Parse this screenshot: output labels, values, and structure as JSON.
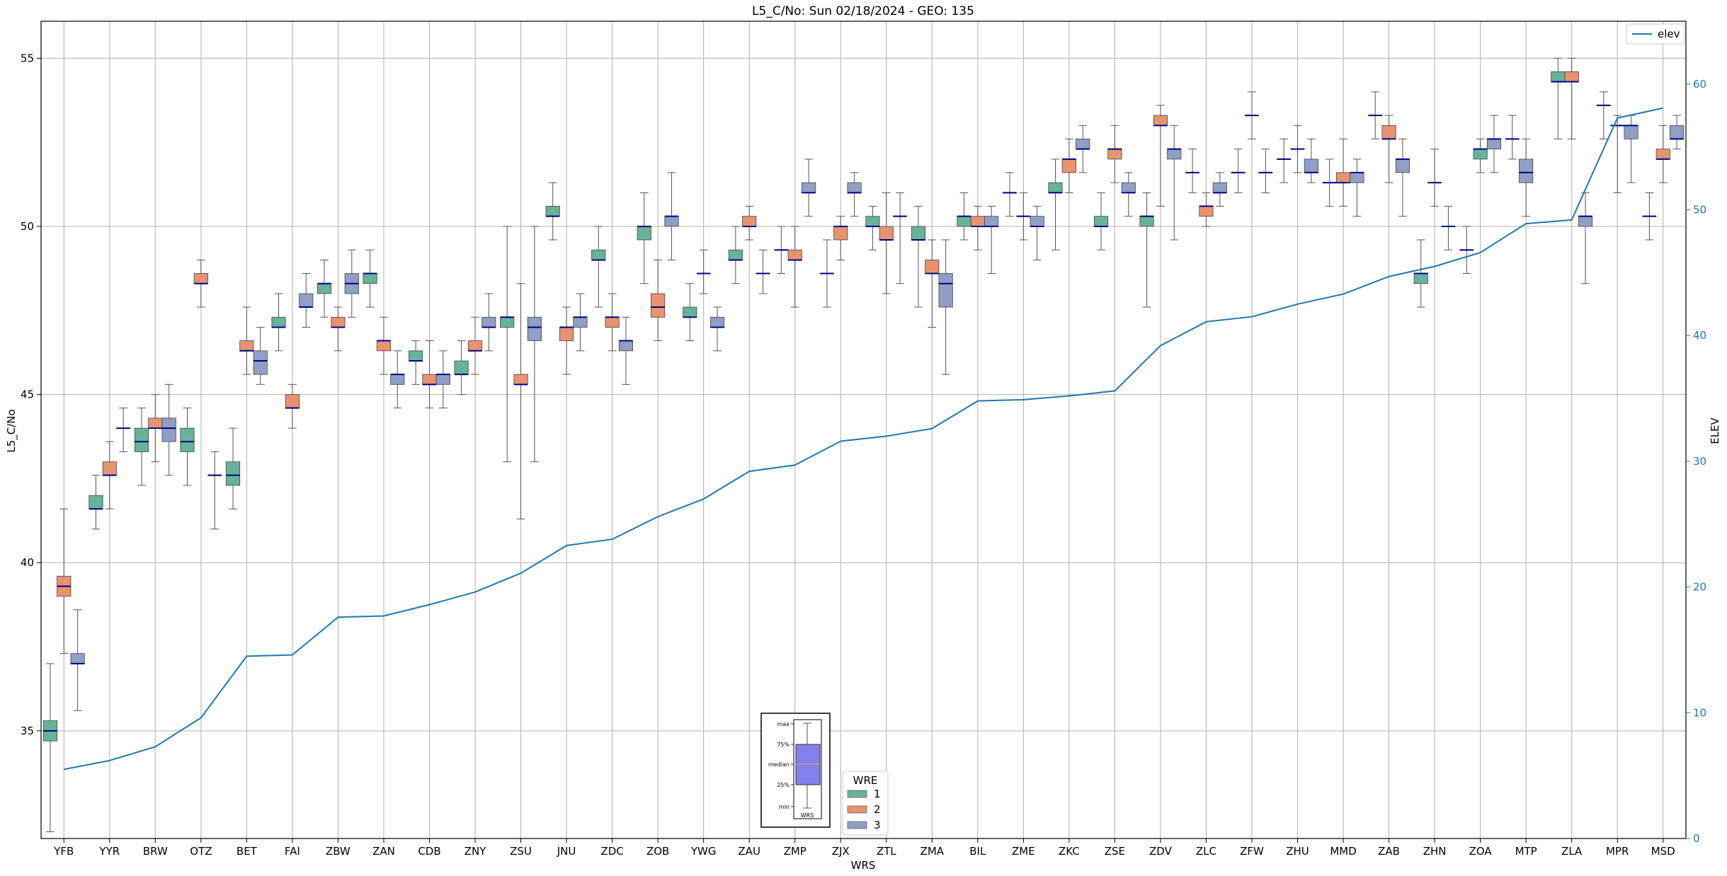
{
  "chart_data": {
    "type": "box",
    "title": "L5_C/No: Sun 02/18/2024 - GEO: 135",
    "xlabel": "WRS",
    "ylabel": "L5_C/No",
    "y2label": "ELEV",
    "ylim": [
      31.8,
      56.1
    ],
    "y2lim": [
      0,
      65
    ],
    "yticks": [
      35,
      40,
      45,
      50,
      55
    ],
    "y2ticks": [
      0,
      10,
      20,
      30,
      40,
      50,
      60
    ],
    "grid": true,
    "categories": [
      "YFB",
      "YYR",
      "BRW",
      "OTZ",
      "BET",
      "FAI",
      "ZBW",
      "ZAN",
      "CDB",
      "ZNY",
      "ZSU",
      "JNU",
      "ZDC",
      "ZOB",
      "YWG",
      "ZAU",
      "ZMP",
      "ZJX",
      "ZTL",
      "ZMA",
      "BIL",
      "ZME",
      "ZKC",
      "ZSE",
      "ZDV",
      "ZLC",
      "ZFW",
      "ZHU",
      "MMD",
      "ZAB",
      "ZHN",
      "ZOA",
      "MTP",
      "ZLA",
      "MPR",
      "MSD"
    ],
    "series_colors": {
      "1": "#66b39a",
      "2": "#e8936f",
      "3": "#8f9fc5"
    },
    "median_color": "#00008b",
    "elev_color": "#1f77b4",
    "boxes": [
      {
        "cat": "YFB",
        "wre": "1",
        "min": 32,
        "q1": 34.7,
        "med": 35,
        "q3": 35.3,
        "max": 37
      },
      {
        "cat": "YFB",
        "wre": "2",
        "min": 37.3,
        "q1": 39,
        "med": 39.3,
        "q3": 39.6,
        "max": 41.6
      },
      {
        "cat": "YFB",
        "wre": "3",
        "min": 35.6,
        "q1": 37,
        "med": 37,
        "q3": 37.3,
        "max": 38.6
      },
      {
        "cat": "YYR",
        "wre": "1",
        "min": 41,
        "q1": 41.6,
        "med": 41.6,
        "q3": 42,
        "max": 42.6
      },
      {
        "cat": "YYR",
        "wre": "2",
        "min": 41.6,
        "q1": 42.6,
        "med": 42.6,
        "q3": 43,
        "max": 43.6
      },
      {
        "cat": "YYR",
        "wre": "3",
        "min": 43.3,
        "q1": 44,
        "med": 44,
        "q3": 44,
        "max": 44.6
      },
      {
        "cat": "BRW",
        "wre": "1",
        "min": 42.3,
        "q1": 43.3,
        "med": 43.6,
        "q3": 44,
        "max": 44.6
      },
      {
        "cat": "BRW",
        "wre": "2",
        "min": 43,
        "q1": 44,
        "med": 44,
        "q3": 44.3,
        "max": 45
      },
      {
        "cat": "BRW",
        "wre": "3",
        "min": 42.6,
        "q1": 43.6,
        "med": 44,
        "q3": 44.3,
        "max": 45.3
      },
      {
        "cat": "OTZ",
        "wre": "1",
        "min": 42.3,
        "q1": 43.3,
        "med": 43.6,
        "q3": 44,
        "max": 44.6
      },
      {
        "cat": "OTZ",
        "wre": "2",
        "min": 47.6,
        "q1": 48.3,
        "med": 48.3,
        "q3": 48.6,
        "max": 49
      },
      {
        "cat": "OTZ",
        "wre": "3",
        "min": 41,
        "q1": 42.6,
        "med": 42.6,
        "q3": 42.6,
        "max": 43.3
      },
      {
        "cat": "BET",
        "wre": "1",
        "min": 41.6,
        "q1": 42.3,
        "med": 42.6,
        "q3": 43,
        "max": 44
      },
      {
        "cat": "BET",
        "wre": "2",
        "min": 45.6,
        "q1": 46.3,
        "med": 46.3,
        "q3": 46.6,
        "max": 47.6
      },
      {
        "cat": "BET",
        "wre": "3",
        "min": 45.3,
        "q1": 45.6,
        "med": 46,
        "q3": 46.3,
        "max": 47
      },
      {
        "cat": "FAI",
        "wre": "1",
        "min": 46.3,
        "q1": 47,
        "med": 47,
        "q3": 47.3,
        "max": 48
      },
      {
        "cat": "FAI",
        "wre": "2",
        "min": 44,
        "q1": 44.6,
        "med": 44.6,
        "q3": 45,
        "max": 45.3
      },
      {
        "cat": "FAI",
        "wre": "3",
        "min": 47,
        "q1": 47.6,
        "med": 47.6,
        "q3": 48,
        "max": 48.6
      },
      {
        "cat": "ZBW",
        "wre": "1",
        "min": 47.3,
        "q1": 48,
        "med": 48.3,
        "q3": 48.3,
        "max": 49
      },
      {
        "cat": "ZBW",
        "wre": "2",
        "min": 46.3,
        "q1": 47,
        "med": 47,
        "q3": 47.3,
        "max": 47.6
      },
      {
        "cat": "ZBW",
        "wre": "3",
        "min": 47.3,
        "q1": 48,
        "med": 48.3,
        "q3": 48.6,
        "max": 49.3
      },
      {
        "cat": "ZAN",
        "wre": "1",
        "min": 47.6,
        "q1": 48.3,
        "med": 48.6,
        "q3": 48.6,
        "max": 49.3
      },
      {
        "cat": "ZAN",
        "wre": "2",
        "min": 45.6,
        "q1": 46.3,
        "med": 46.6,
        "q3": 46.6,
        "max": 47.3
      },
      {
        "cat": "ZAN",
        "wre": "3",
        "min": 44.6,
        "q1": 45.3,
        "med": 45.6,
        "q3": 45.6,
        "max": 46.3
      },
      {
        "cat": "CDB",
        "wre": "1",
        "min": 45.3,
        "q1": 46,
        "med": 46,
        "q3": 46.3,
        "max": 46.6
      },
      {
        "cat": "CDB",
        "wre": "2",
        "min": 44.6,
        "q1": 45.3,
        "med": 45.3,
        "q3": 45.6,
        "max": 46.6
      },
      {
        "cat": "CDB",
        "wre": "3",
        "min": 44.6,
        "q1": 45.3,
        "med": 45.6,
        "q3": 45.6,
        "max": 46.3
      },
      {
        "cat": "ZNY",
        "wre": "1",
        "min": 45,
        "q1": 45.6,
        "med": 45.6,
        "q3": 46,
        "max": 46.6
      },
      {
        "cat": "ZNY",
        "wre": "2",
        "min": 45.6,
        "q1": 46.3,
        "med": 46.3,
        "q3": 46.6,
        "max": 47.3
      },
      {
        "cat": "ZNY",
        "wre": "3",
        "min": 46.3,
        "q1": 47,
        "med": 47,
        "q3": 47.3,
        "max": 48
      },
      {
        "cat": "ZSU",
        "wre": "1",
        "min": 43,
        "q1": 47,
        "med": 47.3,
        "q3": 47.3,
        "max": 50
      },
      {
        "cat": "ZSU",
        "wre": "2",
        "min": 41.3,
        "q1": 45.3,
        "med": 45.3,
        "q3": 45.6,
        "max": 48.3
      },
      {
        "cat": "ZSU",
        "wre": "3",
        "min": 43,
        "q1": 46.6,
        "med": 47,
        "q3": 47.3,
        "max": 50
      },
      {
        "cat": "JNU",
        "wre": "1",
        "min": 49.6,
        "q1": 50.3,
        "med": 50.3,
        "q3": 50.6,
        "max": 51.3
      },
      {
        "cat": "JNU",
        "wre": "2",
        "min": 45.6,
        "q1": 46.6,
        "med": 47,
        "q3": 47,
        "max": 47.6
      },
      {
        "cat": "JNU",
        "wre": "3",
        "min": 46.3,
        "q1": 47,
        "med": 47.3,
        "q3": 47.3,
        "max": 48
      },
      {
        "cat": "ZDC",
        "wre": "1",
        "min": 47.6,
        "q1": 49,
        "med": 49,
        "q3": 49.3,
        "max": 50
      },
      {
        "cat": "ZDC",
        "wre": "2",
        "min": 46.3,
        "q1": 47,
        "med": 47.3,
        "q3": 47.3,
        "max": 48
      },
      {
        "cat": "ZDC",
        "wre": "3",
        "min": 45.3,
        "q1": 46.3,
        "med": 46.6,
        "q3": 46.6,
        "max": 47.3
      },
      {
        "cat": "ZOB",
        "wre": "1",
        "min": 48.3,
        "q1": 49.6,
        "med": 50,
        "q3": 50,
        "max": 51
      },
      {
        "cat": "ZOB",
        "wre": "2",
        "min": 46.6,
        "q1": 47.3,
        "med": 47.6,
        "q3": 48,
        "max": 49
      },
      {
        "cat": "ZOB",
        "wre": "3",
        "min": 49,
        "q1": 50,
        "med": 50.3,
        "q3": 50.3,
        "max": 51.6
      },
      {
        "cat": "YWG",
        "wre": "1",
        "min": 46.6,
        "q1": 47.3,
        "med": 47.3,
        "q3": 47.6,
        "max": 48.3
      },
      {
        "cat": "YWG",
        "wre": "3",
        "min": 48,
        "q1": 48.6,
        "med": 48.6,
        "q3": 48.6,
        "max": 49.3
      },
      {
        "cat": "YWG",
        "wre": "3",
        "min": 46.3,
        "q1": 47,
        "med": 47,
        "q3": 47.3,
        "max": 47.6
      },
      {
        "cat": "ZAU",
        "wre": "1",
        "min": 48.3,
        "q1": 49,
        "med": 49,
        "q3": 49.3,
        "max": 50
      },
      {
        "cat": "ZAU",
        "wre": "2",
        "min": 49.6,
        "q1": 50,
        "med": 50,
        "q3": 50.3,
        "max": 50.6
      },
      {
        "cat": "ZAU",
        "wre": "3",
        "min": 48,
        "q1": 48.6,
        "med": 48.6,
        "q3": 48.6,
        "max": 49.3
      },
      {
        "cat": "ZMP",
        "wre": "1",
        "min": 48.6,
        "q1": 49.3,
        "med": 49.3,
        "q3": 49.3,
        "max": 50
      },
      {
        "cat": "ZMP",
        "wre": "2",
        "min": 47.6,
        "q1": 49,
        "med": 49,
        "q3": 49.3,
        "max": 50
      },
      {
        "cat": "ZMP",
        "wre": "3",
        "min": 50.3,
        "q1": 51,
        "med": 51,
        "q3": 51.3,
        "max": 52
      },
      {
        "cat": "ZJX",
        "wre": "1",
        "min": 47.6,
        "q1": 48.6,
        "med": 48.6,
        "q3": 48.6,
        "max": 49.6
      },
      {
        "cat": "ZJX",
        "wre": "2",
        "min": 49,
        "q1": 49.6,
        "med": 50,
        "q3": 50,
        "max": 50.3
      },
      {
        "cat": "ZJX",
        "wre": "3",
        "min": 50.3,
        "q1": 51,
        "med": 51,
        "q3": 51.3,
        "max": 51.6
      },
      {
        "cat": "ZTL",
        "wre": "1",
        "min": 49.3,
        "q1": 50,
        "med": 50,
        "q3": 50.3,
        "max": 50.6
      },
      {
        "cat": "ZTL",
        "wre": "2",
        "min": 48,
        "q1": 49.6,
        "med": 49.6,
        "q3": 50,
        "max": 51
      },
      {
        "cat": "ZTL",
        "wre": "3",
        "min": 48.3,
        "q1": 50.3,
        "med": 50.3,
        "q3": 50.3,
        "max": 51
      },
      {
        "cat": "ZMA",
        "wre": "1",
        "min": 47.6,
        "q1": 49.6,
        "med": 49.6,
        "q3": 50,
        "max": 50.6
      },
      {
        "cat": "ZMA",
        "wre": "2",
        "min": 47,
        "q1": 48.6,
        "med": 48.6,
        "q3": 49,
        "max": 49.6
      },
      {
        "cat": "ZMA",
        "wre": "3",
        "min": 45.6,
        "q1": 47.6,
        "med": 48.3,
        "q3": 48.6,
        "max": 49.6
      },
      {
        "cat": "BIL",
        "wre": "1",
        "min": 49.6,
        "q1": 50,
        "med": 50.3,
        "q3": 50.3,
        "max": 51
      },
      {
        "cat": "BIL",
        "wre": "2",
        "min": 49.3,
        "q1": 50,
        "med": 50,
        "q3": 50.3,
        "max": 50.6
      },
      {
        "cat": "BIL",
        "wre": "3",
        "min": 48.6,
        "q1": 50,
        "med": 50,
        "q3": 50.3,
        "max": 50.6
      },
      {
        "cat": "ZME",
        "wre": "1",
        "min": 50.3,
        "q1": 51,
        "med": 51,
        "q3": 51,
        "max": 51.6
      },
      {
        "cat": "ZME",
        "wre": "2",
        "min": 49.6,
        "q1": 50.3,
        "med": 50.3,
        "q3": 50.3,
        "max": 51
      },
      {
        "cat": "ZME",
        "wre": "3",
        "min": 49,
        "q1": 50,
        "med": 50,
        "q3": 50.3,
        "max": 50.6
      },
      {
        "cat": "ZKC",
        "wre": "1",
        "min": 49.3,
        "q1": 51,
        "med": 51,
        "q3": 51.3,
        "max": 52
      },
      {
        "cat": "ZKC",
        "wre": "2",
        "min": 51,
        "q1": 51.6,
        "med": 52,
        "q3": 52,
        "max": 52.6
      },
      {
        "cat": "ZKC",
        "wre": "3",
        "min": 51.6,
        "q1": 52.3,
        "med": 52.3,
        "q3": 52.6,
        "max": 53
      },
      {
        "cat": "ZSE",
        "wre": "1",
        "min": 49.3,
        "q1": 50,
        "med": 50,
        "q3": 50.3,
        "max": 51
      },
      {
        "cat": "ZSE",
        "wre": "2",
        "min": 51.3,
        "q1": 52,
        "med": 52.3,
        "q3": 52.3,
        "max": 53
      },
      {
        "cat": "ZSE",
        "wre": "3",
        "min": 50.3,
        "q1": 51,
        "med": 51,
        "q3": 51.3,
        "max": 51.6
      },
      {
        "cat": "ZDV",
        "wre": "1",
        "min": 47.6,
        "q1": 50,
        "med": 50.3,
        "q3": 50.3,
        "max": 51
      },
      {
        "cat": "ZDV",
        "wre": "2",
        "min": 50.6,
        "q1": 53,
        "med": 53,
        "q3": 53.3,
        "max": 53.6
      },
      {
        "cat": "ZDV",
        "wre": "3",
        "min": 49.6,
        "q1": 52,
        "med": 52.3,
        "q3": 52.3,
        "max": 53
      },
      {
        "cat": "ZLC",
        "wre": "3",
        "min": 51,
        "q1": 51.6,
        "med": 51.6,
        "q3": 51.6,
        "max": 52.3
      },
      {
        "cat": "ZLC",
        "wre": "2",
        "min": 50,
        "q1": 50.3,
        "med": 50.6,
        "q3": 50.6,
        "max": 51
      },
      {
        "cat": "ZLC",
        "wre": "3",
        "min": 50.6,
        "q1": 51,
        "med": 51,
        "q3": 51.3,
        "max": 51.6
      },
      {
        "cat": "ZFW",
        "wre": "3",
        "min": 51,
        "q1": 51.6,
        "med": 51.6,
        "q3": 51.6,
        "max": 52.3
      },
      {
        "cat": "ZFW",
        "wre": "3",
        "min": 52.6,
        "q1": 53.3,
        "med": 53.3,
        "q3": 53.3,
        "max": 54
      },
      {
        "cat": "ZFW",
        "wre": "3",
        "min": 51,
        "q1": 51.6,
        "med": 51.6,
        "q3": 51.6,
        "max": 52.3
      },
      {
        "cat": "ZHU",
        "wre": "3",
        "min": 51.3,
        "q1": 52,
        "med": 52,
        "q3": 52,
        "max": 52.6
      },
      {
        "cat": "ZHU",
        "wre": "3",
        "min": 51.6,
        "q1": 52.3,
        "med": 52.3,
        "q3": 52.3,
        "max": 53
      },
      {
        "cat": "ZHU",
        "wre": "3",
        "min": 51.3,
        "q1": 51.6,
        "med": 51.6,
        "q3": 52,
        "max": 52.6
      },
      {
        "cat": "MMD",
        "wre": "3",
        "min": 50.6,
        "q1": 51.3,
        "med": 51.3,
        "q3": 51.3,
        "max": 52
      },
      {
        "cat": "MMD",
        "wre": "2",
        "min": 50.6,
        "q1": 51.3,
        "med": 51.3,
        "q3": 51.6,
        "max": 52.6
      },
      {
        "cat": "MMD",
        "wre": "3",
        "min": 50.3,
        "q1": 51.3,
        "med": 51.6,
        "q3": 51.6,
        "max": 52
      },
      {
        "cat": "ZAB",
        "wre": "3",
        "min": 52.6,
        "q1": 53.3,
        "med": 53.3,
        "q3": 53.3,
        "max": 54
      },
      {
        "cat": "ZAB",
        "wre": "2",
        "min": 51.3,
        "q1": 52.6,
        "med": 52.6,
        "q3": 53,
        "max": 53.3
      },
      {
        "cat": "ZAB",
        "wre": "3",
        "min": 50.3,
        "q1": 51.6,
        "med": 52,
        "q3": 52,
        "max": 52.6
      },
      {
        "cat": "ZHN",
        "wre": "1",
        "min": 47.6,
        "q1": 48.3,
        "med": 48.6,
        "q3": 48.6,
        "max": 49.6
      },
      {
        "cat": "ZHN",
        "wre": "3",
        "min": 50.6,
        "q1": 51.3,
        "med": 51.3,
        "q3": 51.3,
        "max": 52.3
      },
      {
        "cat": "ZHN",
        "wre": "3",
        "min": 49.3,
        "q1": 50,
        "med": 50,
        "q3": 50,
        "max": 50.6
      },
      {
        "cat": "ZOA",
        "wre": "3",
        "min": 48.6,
        "q1": 49.3,
        "med": 49.3,
        "q3": 49.3,
        "max": 50
      },
      {
        "cat": "ZOA",
        "wre": "1",
        "min": 51.6,
        "q1": 52,
        "med": 52.3,
        "q3": 52.3,
        "max": 52.6
      },
      {
        "cat": "ZOA",
        "wre": "3",
        "min": 51.6,
        "q1": 52.3,
        "med": 52.6,
        "q3": 52.6,
        "max": 53.3
      },
      {
        "cat": "MTP",
        "wre": "3",
        "min": 52,
        "q1": 52.6,
        "med": 52.6,
        "q3": 52.6,
        "max": 53.3
      },
      {
        "cat": "MTP",
        "wre": "3",
        "min": 50.3,
        "q1": 51.3,
        "med": 51.6,
        "q3": 52,
        "max": 52.6
      },
      {
        "cat": "ZLA",
        "wre": "1",
        "min": 52.6,
        "q1": 54.3,
        "med": 54.3,
        "q3": 54.6,
        "max": 55
      },
      {
        "cat": "ZLA",
        "wre": "2",
        "min": 52.6,
        "q1": 54.3,
        "med": 54.3,
        "q3": 54.6,
        "max": 55
      },
      {
        "cat": "ZLA",
        "wre": "3",
        "min": 48.3,
        "q1": 50,
        "med": 50.3,
        "q3": 50.3,
        "max": 51
      },
      {
        "cat": "MPR",
        "wre": "3",
        "min": 52.6,
        "q1": 53.6,
        "med": 53.6,
        "q3": 53.6,
        "max": 54
      },
      {
        "cat": "MPR",
        "wre": "3",
        "min": 51,
        "q1": 53,
        "med": 53,
        "q3": 53,
        "max": 53.3
      },
      {
        "cat": "MPR",
        "wre": "3",
        "min": 51.3,
        "q1": 52.6,
        "med": 53,
        "q3": 53,
        "max": 53.3
      },
      {
        "cat": "MSD",
        "wre": "3",
        "min": 49.6,
        "q1": 50.3,
        "med": 50.3,
        "q3": 50.3,
        "max": 51
      },
      {
        "cat": "MSD",
        "wre": "2",
        "min": 51.3,
        "q1": 52,
        "med": 52,
        "q3": 52.3,
        "max": 53
      },
      {
        "cat": "MSD",
        "wre": "3",
        "min": 52.3,
        "q1": 52.6,
        "med": 52.6,
        "q3": 53,
        "max": 53.3
      }
    ],
    "elev": [
      5.5,
      6.2,
      7.3,
      9.6,
      14.5,
      14.6,
      17.6,
      17.7,
      18.6,
      19.6,
      21.1,
      23.3,
      23.8,
      25.6,
      27.0,
      29.2,
      29.7,
      31.6,
      32.0,
      32.6,
      34.8,
      34.9,
      35.2,
      35.6,
      39.2,
      41.1,
      41.5,
      42.5,
      43.3,
      44.7,
      45.5,
      46.6,
      48.9,
      49.2,
      57.3,
      58.1
    ],
    "legend": {
      "line_label": "elev",
      "wre_title": "WRE",
      "wre_entries": [
        "1",
        "2",
        "3"
      ]
    },
    "box_key": {
      "labels": [
        "max",
        "75%",
        "median",
        "25%",
        "min"
      ],
      "xlabel": "WRS"
    }
  }
}
